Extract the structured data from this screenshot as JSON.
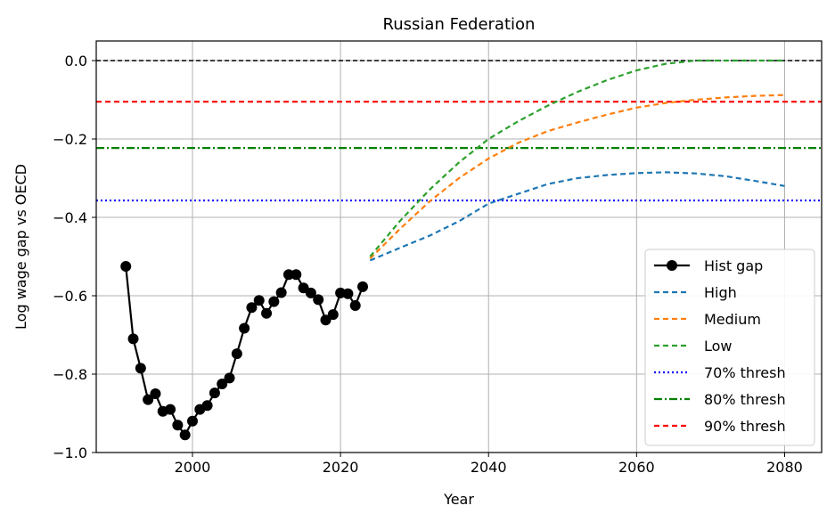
{
  "chart_data": {
    "type": "line",
    "title": "Russian Federation",
    "xlabel": "Year",
    "ylabel": "Log wage gap vs OECD",
    "xlim": [
      1987,
      2085
    ],
    "ylim": [
      -1.0,
      0.05
    ],
    "xticks": [
      2000,
      2020,
      2040,
      2060,
      2080
    ],
    "yticks": [
      -1.0,
      -0.8,
      -0.6,
      -0.4,
      -0.2,
      0.0
    ],
    "xtick_labels": [
      "2000",
      "2020",
      "2040",
      "2060",
      "2080"
    ],
    "ytick_labels": [
      "−1.0",
      "−0.8",
      "−0.6",
      "−0.4",
      "−0.2",
      "0.0"
    ],
    "grid": true,
    "legend_position": "lower-right",
    "zero_line": {
      "y": 0.0,
      "color": "#000000",
      "dash": "dashed"
    },
    "series": [
      {
        "name": "Hist gap",
        "style": "solid-markers",
        "color": "#000000",
        "x": [
          1991,
          1992,
          1993,
          1994,
          1995,
          1996,
          1997,
          1998,
          1999,
          2000,
          2001,
          2002,
          2003,
          2004,
          2005,
          2006,
          2007,
          2008,
          2009,
          2010,
          2011,
          2012,
          2013,
          2014,
          2015,
          2016,
          2017,
          2018,
          2019,
          2020,
          2021,
          2022,
          2023
        ],
        "y": [
          -0.525,
          -0.71,
          -0.785,
          -0.865,
          -0.85,
          -0.895,
          -0.89,
          -0.93,
          -0.955,
          -0.92,
          -0.89,
          -0.88,
          -0.848,
          -0.825,
          -0.81,
          -0.748,
          -0.683,
          -0.63,
          -0.612,
          -0.645,
          -0.615,
          -0.592,
          -0.546,
          -0.546,
          -0.58,
          -0.593,
          -0.61,
          -0.662,
          -0.648,
          -0.593,
          -0.595,
          -0.625,
          -0.577
        ]
      },
      {
        "name": "High",
        "style": "dashed",
        "color": "#1f77b4",
        "x": [
          2024,
          2028,
          2032,
          2036,
          2040,
          2044,
          2048,
          2052,
          2056,
          2060,
          2064,
          2068,
          2072,
          2076,
          2080
        ],
        "y": [
          -0.51,
          -0.478,
          -0.447,
          -0.41,
          -0.365,
          -0.34,
          -0.315,
          -0.3,
          -0.292,
          -0.287,
          -0.285,
          -0.288,
          -0.295,
          -0.307,
          -0.32
        ]
      },
      {
        "name": "Medium",
        "style": "dashed",
        "color": "#ff7f0e",
        "x": [
          2024,
          2028,
          2032,
          2036,
          2040,
          2044,
          2048,
          2052,
          2056,
          2060,
          2064,
          2068,
          2072,
          2076,
          2080
        ],
        "y": [
          -0.505,
          -0.43,
          -0.36,
          -0.3,
          -0.25,
          -0.21,
          -0.18,
          -0.158,
          -0.138,
          -0.12,
          -0.108,
          -0.1,
          -0.094,
          -0.09,
          -0.088
        ]
      },
      {
        "name": "Low",
        "style": "dashed",
        "color": "#2ca02c",
        "x": [
          2024,
          2028,
          2032,
          2036,
          2040,
          2044,
          2048,
          2052,
          2056,
          2060,
          2064,
          2068,
          2072,
          2076,
          2080
        ],
        "y": [
          -0.5,
          -0.41,
          -0.33,
          -0.26,
          -0.2,
          -0.155,
          -0.115,
          -0.08,
          -0.05,
          -0.025,
          -0.008,
          0.0,
          0.0,
          0.0,
          0.0
        ]
      },
      {
        "name": "70% thresh",
        "style": "dotted",
        "color": "#0000ff",
        "y_const": -0.357
      },
      {
        "name": "80% thresh",
        "style": "dashdot",
        "color": "#008000",
        "y_const": -0.223
      },
      {
        "name": "90% thresh",
        "style": "dashed",
        "color": "#ff0000",
        "y_const": -0.105
      }
    ]
  }
}
